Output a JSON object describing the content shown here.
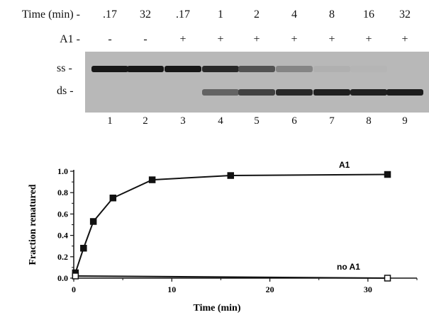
{
  "gel": {
    "time_label": "Time (min) -",
    "a1_label": "A1 -",
    "times": [
      ".17",
      "32",
      ".17",
      "1",
      "2",
      "4",
      "8",
      "16",
      "32"
    ],
    "a1": [
      "-",
      "-",
      "+",
      "+",
      "+",
      "+",
      "+",
      "+",
      "+"
    ],
    "band_labels": {
      "ss": "ss -",
      "ds": "ds -"
    },
    "lanes": [
      "1",
      "2",
      "3",
      "4",
      "5",
      "6",
      "7",
      "8",
      "9"
    ],
    "ss_intensity": [
      0.95,
      0.95,
      0.95,
      0.85,
      0.6,
      0.3,
      0.05,
      0.02,
      0.0
    ],
    "ds_intensity": [
      0.0,
      0.0,
      0.0,
      0.5,
      0.7,
      0.85,
      0.9,
      0.9,
      0.92
    ]
  },
  "chart_data": {
    "type": "line",
    "xlabel": "Time (min)",
    "ylabel": "Fraction renatured",
    "xlim": [
      0,
      35
    ],
    "ylim": [
      0,
      1.0
    ],
    "xticks": [
      "0",
      "10",
      "20",
      "30"
    ],
    "yticks": [
      "0.0",
      "0.2",
      "0.4",
      "0.6",
      "0.8",
      "1.0"
    ],
    "series": [
      {
        "name": "A1",
        "marker": "filled-square",
        "x": [
          0.17,
          1,
          2,
          4,
          8,
          16,
          32
        ],
        "y": [
          0.05,
          0.28,
          0.53,
          0.75,
          0.92,
          0.96,
          0.97
        ]
      },
      {
        "name": "no A1",
        "marker": "open-square",
        "x": [
          0.17,
          32
        ],
        "y": [
          0.02,
          0.0
        ]
      }
    ]
  }
}
